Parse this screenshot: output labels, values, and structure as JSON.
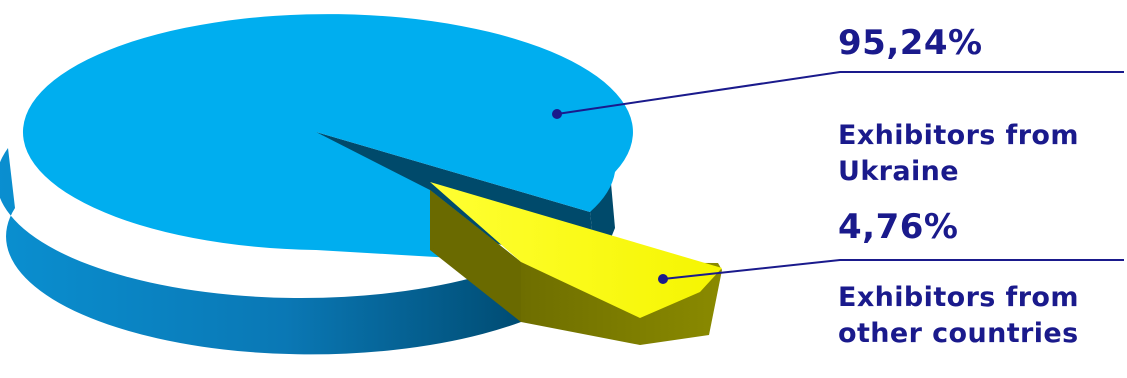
{
  "chart_data": {
    "type": "pie",
    "three_d": true,
    "exploded_slice": "Exhibitors from other countries",
    "legend": "none",
    "slices": [
      {
        "label": "Exhibitors from Ukraine",
        "label_lines": [
          "Exhibitors from",
          "Ukraine"
        ],
        "value": 95.24,
        "value_label": "95,24%",
        "color": "#00aeef"
      },
      {
        "label": "Exhibitors from other countries",
        "label_lines": [
          "Exhibitors from",
          "other countries"
        ],
        "value": 4.76,
        "value_label": "4,76%",
        "color": "#ffff00"
      }
    ]
  },
  "colors": {
    "text": "#1a1a8c",
    "leader_line": "#1a1a8c",
    "ukraine_top": "#00aeef",
    "ukraine_side": "#0077b0",
    "ukraine_inner_wall": "#004a6b",
    "other_top": "#ffff00",
    "other_side": "#7a7a00"
  }
}
